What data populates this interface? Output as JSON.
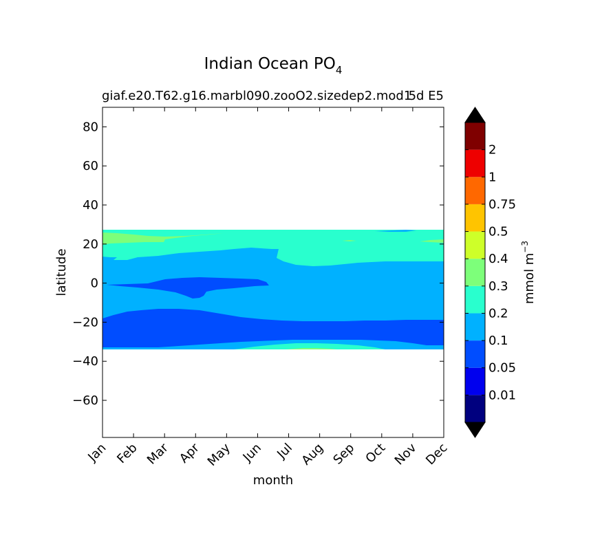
{
  "chart_data": {
    "type": "contourf",
    "title": "Indian Ocean PO",
    "title_subscript": "4",
    "subtitle_left": "giaf.e20.T62.g16.marbl090.zooO2.sizedep2.mod1",
    "subtitle_right": "5d E5",
    "xlabel": "month",
    "ylabel": "latitude",
    "x_ticks": [
      "Jan",
      "Feb",
      "Mar",
      "Apr",
      "May",
      "Jun",
      "Jul",
      "Aug",
      "Sep",
      "Oct",
      "Nov",
      "Dec"
    ],
    "x_range": [
      0,
      11
    ],
    "y_ticks": [
      80,
      60,
      40,
      20,
      0,
      -20,
      -40,
      -60
    ],
    "y_tick_labels": [
      "80",
      "60",
      "40",
      "20",
      "0",
      "−20",
      "−40",
      "−60"
    ],
    "ylim": [
      -79,
      90
    ],
    "data_lat_range": [
      -34,
      27
    ],
    "colorbar": {
      "label": "mmol m",
      "label_superscript": "−3",
      "levels": [
        "0.01",
        "0.05",
        "0.1",
        "0.2",
        "0.3",
        "0.4",
        "0.5",
        "0.75",
        "1",
        "2"
      ],
      "colors": [
        "#00007f",
        "#0000ee",
        "#004dff",
        "#00b1ff",
        "#29ffce",
        "#7dff7a",
        "#ceff29",
        "#ffc400",
        "#ff6800",
        "#ee0000",
        "#7f0000"
      ],
      "extend": "both",
      "extend_colors": [
        "#000000",
        "#000000"
      ]
    },
    "regions": [
      {
        "level": "0.05-0.1",
        "color": "#004dff",
        "lat_top": [
          -19,
          -17,
          -14,
          -13,
          -14,
          -16,
          -17,
          -18,
          -19,
          -20,
          -20,
          -20
        ],
        "lat_bottom": [
          -33,
          -33,
          -33,
          -33,
          -33,
          -32,
          -31,
          -31,
          -31,
          -32,
          -33,
          -33
        ]
      },
      {
        "level": "0.2-0.3",
        "color": "#29ffce",
        "lat_top": [
          27,
          27,
          27,
          27,
          27,
          27,
          27,
          27,
          27,
          27,
          27,
          27
        ],
        "lat_bottom": [
          12,
          13,
          14,
          16,
          17,
          17,
          12,
          9,
          10,
          11,
          11,
          11
        ]
      },
      {
        "level": "0.3-0.4",
        "color": "#7dff7a",
        "area": "Jan-Mar, 20 to 25"
      },
      {
        "level": "0.05-0.1",
        "color": "#004dff",
        "area": "Jan-Jun, -8 to 3"
      }
    ]
  }
}
